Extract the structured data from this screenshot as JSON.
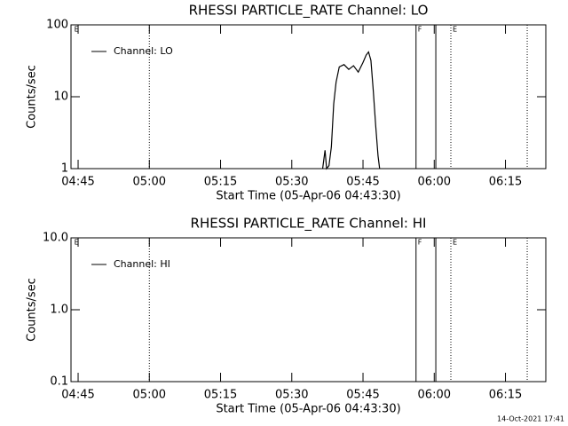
{
  "chart_data": [
    {
      "type": "line",
      "title": "RHESSI PARTICLE_RATE Channel: LO",
      "xlabel": "Start Time (05-Apr-06 04:43:30)",
      "ylabel": "Counts/sec",
      "log_y": true,
      "ylim": [
        1,
        100
      ],
      "yticks": [
        1,
        10,
        100
      ],
      "xlim": [
        "04:43:30",
        "06:23:30"
      ],
      "xticks": [
        "04:45",
        "05:00",
        "05:15",
        "05:30",
        "05:45",
        "06:00",
        "06:15"
      ],
      "legend": "upper left",
      "series": [
        {
          "name": "Channel: LO",
          "color": "#000000",
          "x": [
            "05:36:30",
            "05:37:00",
            "05:37:20",
            "05:37:50",
            "05:38:20",
            "05:38:50",
            "05:39:20",
            "05:40:00",
            "05:41:00",
            "05:42:00",
            "05:43:00",
            "05:44:00",
            "05:45:00",
            "05:45:40",
            "05:46:10",
            "05:46:40",
            "05:47:10",
            "05:47:40",
            "05:48:10",
            "05:48:30"
          ],
          "values": [
            1,
            1.8,
            1,
            1.1,
            2,
            8,
            16,
            26,
            28,
            24,
            27,
            22,
            30,
            38,
            42,
            32,
            12,
            4,
            1.5,
            1
          ]
        }
      ],
      "markers": [
        {
          "x": "05:00:00",
          "style": "dotted"
        },
        {
          "x": "05:56:10",
          "style": "solid",
          "label": "F"
        },
        {
          "x": "06:00:20",
          "style": "solid"
        },
        {
          "x": "06:03:30",
          "style": "dotted",
          "label": "E"
        },
        {
          "x": "06:19:35",
          "style": "dotted"
        }
      ],
      "annotations": [
        {
          "x": "04:44:10",
          "text": "E"
        }
      ]
    },
    {
      "type": "line",
      "title": "RHESSI PARTICLE_RATE Channel: HI",
      "xlabel": "Start Time (05-Apr-06 04:43:30)",
      "ylabel": "Counts/sec",
      "log_y": true,
      "ylim": [
        0.1,
        10
      ],
      "yticks": [
        0.1,
        {
          "value": 1,
          "label": "1.0"
        },
        {
          "value": 10,
          "label": "10.0"
        }
      ],
      "xlim": [
        "04:43:30",
        "06:23:30"
      ],
      "xticks": [
        "04:45",
        "05:00",
        "05:15",
        "05:30",
        "05:45",
        "06:00",
        "06:15"
      ],
      "legend": "upper left",
      "series": [
        {
          "name": "Channel: HI",
          "color": "#000000",
          "x": [],
          "values": []
        }
      ],
      "markers": [
        {
          "x": "05:00:00",
          "style": "dotted"
        },
        {
          "x": "05:56:10",
          "style": "solid",
          "label": "F"
        },
        {
          "x": "06:00:20",
          "style": "solid"
        },
        {
          "x": "06:03:30",
          "style": "dotted",
          "label": "E"
        },
        {
          "x": "06:19:35",
          "style": "dotted"
        }
      ],
      "annotations": [
        {
          "x": "04:44:10",
          "text": "E"
        }
      ]
    }
  ],
  "footer": "14-Oct-2021 17:41"
}
